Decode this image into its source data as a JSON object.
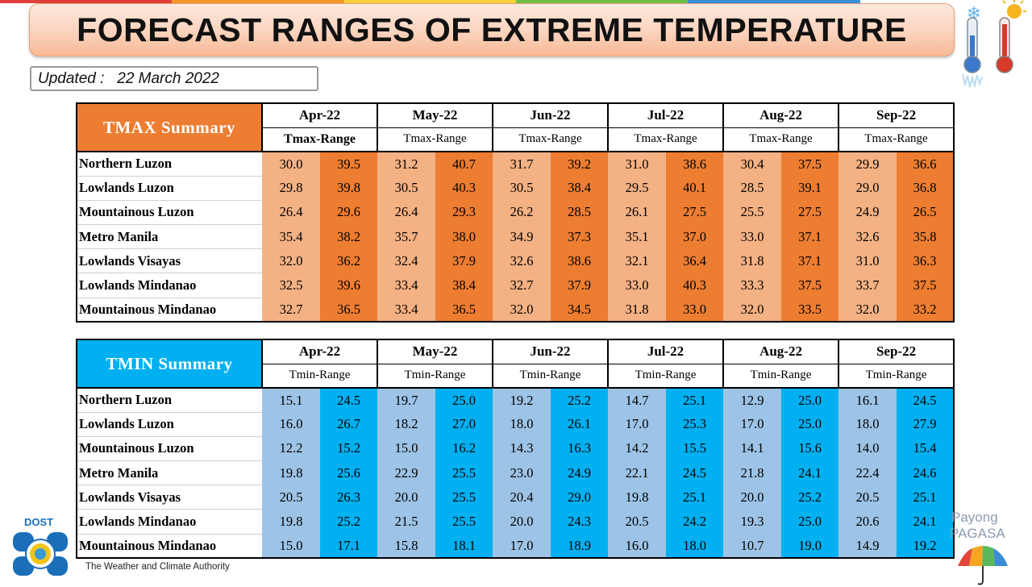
{
  "title": "FORECAST RANGES OF EXTREME TEMPERATURE",
  "updated": {
    "label": "Updated :",
    "date": "22 March 2022"
  },
  "months": [
    "Apr-22",
    "May-22",
    "Jun-22",
    "Jul-22",
    "Aug-22",
    "Sep-22"
  ],
  "colors": {
    "tmax_header": "#ed7d31",
    "tmax_light": "#f4b183",
    "tmax_dark": "#ed7d31",
    "tmin_header": "#00b0f0",
    "tmin_light": "#9dc3e6",
    "tmin_dark": "#00b0f0"
  },
  "tmax": {
    "header": "TMAX Summary",
    "range_label": "Tmax-Range",
    "rows": [
      {
        "region": "Northern Luzon",
        "values": [
          "30.0",
          "39.5",
          "31.2",
          "40.7",
          "31.7",
          "39.2",
          "31.0",
          "38.6",
          "30.4",
          "37.5",
          "29.9",
          "36.6"
        ]
      },
      {
        "region": "Lowlands Luzon",
        "values": [
          "29.8",
          "39.8",
          "30.5",
          "40.3",
          "30.5",
          "38.4",
          "29.5",
          "40.1",
          "28.5",
          "39.1",
          "29.0",
          "36.8"
        ]
      },
      {
        "region": "Mountainous Luzon",
        "values": [
          "26.4",
          "29.6",
          "26.4",
          "29.3",
          "26.2",
          "28.5",
          "26.1",
          "27.5",
          "25.5",
          "27.5",
          "24.9",
          "26.5"
        ]
      },
      {
        "region": "Metro Manila",
        "values": [
          "35.4",
          "38.2",
          "35.7",
          "38.0",
          "34.9",
          "37.3",
          "35.1",
          "37.0",
          "33.0",
          "37.1",
          "32.6",
          "35.8"
        ]
      },
      {
        "region": "Lowlands Visayas",
        "values": [
          "32.0",
          "36.2",
          "32.4",
          "37.9",
          "32.6",
          "38.6",
          "32.1",
          "36.4",
          "31.8",
          "37.1",
          "31.0",
          "36.3"
        ]
      },
      {
        "region": "Lowlands Mindanao",
        "values": [
          "32.5",
          "39.6",
          "33.4",
          "38.4",
          "32.7",
          "37.9",
          "33.0",
          "40.3",
          "33.3",
          "37.5",
          "33.7",
          "37.5"
        ]
      },
      {
        "region": "Mountainous Mindanao",
        "values": [
          "32.7",
          "36.5",
          "33.4",
          "36.5",
          "32.0",
          "34.5",
          "31.8",
          "33.0",
          "32.0",
          "33.5",
          "32.0",
          "33.2"
        ]
      }
    ]
  },
  "tmin": {
    "header": "TMIN Summary",
    "range_label": "Tmin-Range",
    "rows": [
      {
        "region": "Northern Luzon",
        "values": [
          "15.1",
          "24.5",
          "19.7",
          "25.0",
          "19.2",
          "25.2",
          "14.7",
          "25.1",
          "12.9",
          "25.0",
          "16.1",
          "24.5"
        ]
      },
      {
        "region": "Lowlands Luzon",
        "values": [
          "16.0",
          "26.7",
          "18.2",
          "27.0",
          "18.0",
          "26.1",
          "17.0",
          "25.3",
          "17.0",
          "25.0",
          "18.0",
          "27.9"
        ]
      },
      {
        "region": "Mountainous Luzon",
        "values": [
          "12.2",
          "15.2",
          "15.0",
          "16.2",
          "14.3",
          "16.3",
          "14.2",
          "15.5",
          "14.1",
          "15.6",
          "14.0",
          "15.4"
        ]
      },
      {
        "region": "Metro Manila",
        "values": [
          "19.8",
          "25.6",
          "22.9",
          "25.5",
          "23.0",
          "24.9",
          "22.1",
          "24.5",
          "21.8",
          "24.1",
          "22.4",
          "24.6"
        ]
      },
      {
        "region": "Lowlands Visayas",
        "values": [
          "20.5",
          "26.3",
          "20.0",
          "25.5",
          "20.4",
          "29.0",
          "19.8",
          "25.1",
          "20.0",
          "25.2",
          "20.5",
          "25.1"
        ]
      },
      {
        "region": "Lowlands Mindanao",
        "values": [
          "19.8",
          "25.2",
          "21.5",
          "25.5",
          "20.0",
          "24.3",
          "20.5",
          "24.2",
          "19.3",
          "25.0",
          "20.6",
          "24.1"
        ]
      },
      {
        "region": "Mountainous Mindanao",
        "values": [
          "15.0",
          "17.1",
          "15.8",
          "18.1",
          "17.0",
          "18.9",
          "16.0",
          "18.0",
          "10.7",
          "19.0",
          "14.9",
          "19.2"
        ]
      }
    ]
  },
  "footer": {
    "agency_short": "DOST",
    "tagline": "The Weather and Climate Authority",
    "brand_top": "Payong",
    "brand_bottom": "PAGASA"
  },
  "icons": [
    "cold-thermometer-icon",
    "hot-thermometer-icon",
    "pagasa-seal-icon",
    "umbrella-icon"
  ]
}
